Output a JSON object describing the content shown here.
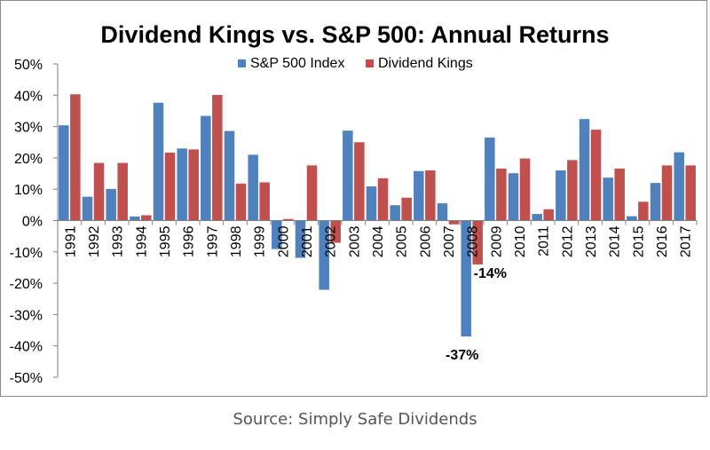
{
  "chart_data": {
    "type": "bar",
    "title": "Dividend Kings vs. S&P 500: Annual Returns",
    "xlabel": "",
    "ylabel": "",
    "ylim": [
      -50,
      50
    ],
    "yticks": [
      50,
      40,
      30,
      20,
      10,
      0,
      -10,
      -20,
      -30,
      -40,
      -50
    ],
    "ytick_labels": [
      "50%",
      "40%",
      "30%",
      "20%",
      "10%",
      "0%",
      "-10%",
      "-20%",
      "-30%",
      "-40%",
      "-50%"
    ],
    "legend_position": "top-center",
    "grid": false,
    "categories": [
      "1991",
      "1992",
      "1993",
      "1994",
      "1995",
      "1996",
      "1997",
      "1998",
      "1999",
      "2000",
      "2001",
      "2002",
      "2003",
      "2004",
      "2005",
      "2006",
      "2007",
      "2008",
      "2009",
      "2010",
      "2011",
      "2012",
      "2013",
      "2014",
      "2015",
      "2016",
      "2017"
    ],
    "series": [
      {
        "name": "S&P 500 Index",
        "color": "#4f81bd",
        "values": [
          30.4,
          7.6,
          10.1,
          1.3,
          37.6,
          23.0,
          33.4,
          28.6,
          21.0,
          -9.1,
          -11.9,
          -22.1,
          28.7,
          10.9,
          4.9,
          15.8,
          5.5,
          -37.0,
          26.5,
          15.1,
          2.1,
          16.0,
          32.4,
          13.7,
          1.4,
          12.0,
          21.8
        ]
      },
      {
        "name": "Dividend Kings",
        "color": "#c0504d",
        "values": [
          40.3,
          18.4,
          18.4,
          1.7,
          21.7,
          22.7,
          40.1,
          11.8,
          12.2,
          0.5,
          17.6,
          -7.1,
          25.0,
          13.5,
          7.3,
          16.0,
          -1.2,
          -14.0,
          16.6,
          19.8,
          3.6,
          19.3,
          29.0,
          16.6,
          6.0,
          17.6,
          17.6
        ]
      }
    ],
    "annotations": [
      {
        "label": "-14%",
        "category": "2008",
        "series": "Dividend Kings"
      },
      {
        "label": "-37%",
        "category": "2008",
        "series": "S&P 500 Index"
      }
    ]
  },
  "source_text": "Source: Simply Safe Dividends"
}
